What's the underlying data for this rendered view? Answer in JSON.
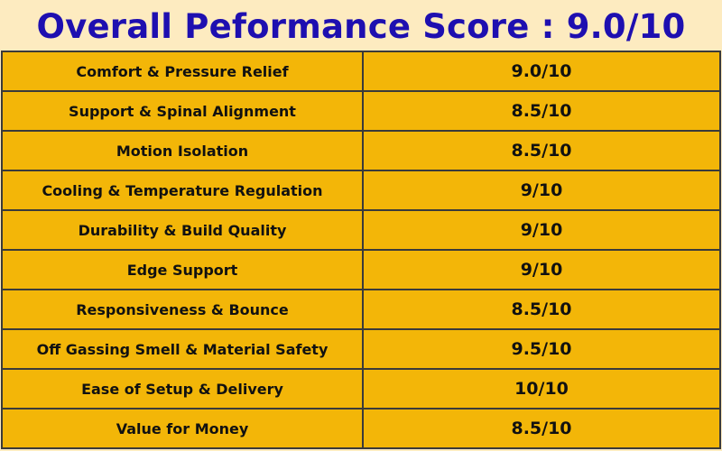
{
  "title": "Overall Peformance Score : 9.0/10",
  "colors": {
    "title_text": "#1e0fb0",
    "header_background": "#fdebc0",
    "table_background": "#f3b608",
    "border": "#3a3a3a"
  },
  "rows": [
    {
      "label": "Comfort & Pressure Relief",
      "score": "9.0/10"
    },
    {
      "label": "Support & Spinal Alignment",
      "score": "8.5/10"
    },
    {
      "label": "Motion Isolation",
      "score": "8.5/10"
    },
    {
      "label": "Cooling & Temperature Regulation",
      "score": "9/10"
    },
    {
      "label": "Durability & Build Quality",
      "score": "9/10"
    },
    {
      "label": "Edge Support",
      "score": "9/10"
    },
    {
      "label": "Responsiveness & Bounce",
      "score": "8.5/10"
    },
    {
      "label": "Off Gassing Smell & Material Safety",
      "score": "9.5/10"
    },
    {
      "label": "Ease of Setup & Delivery",
      "score": "10/10"
    },
    {
      "label": "Value for Money",
      "score": "8.5/10"
    }
  ]
}
